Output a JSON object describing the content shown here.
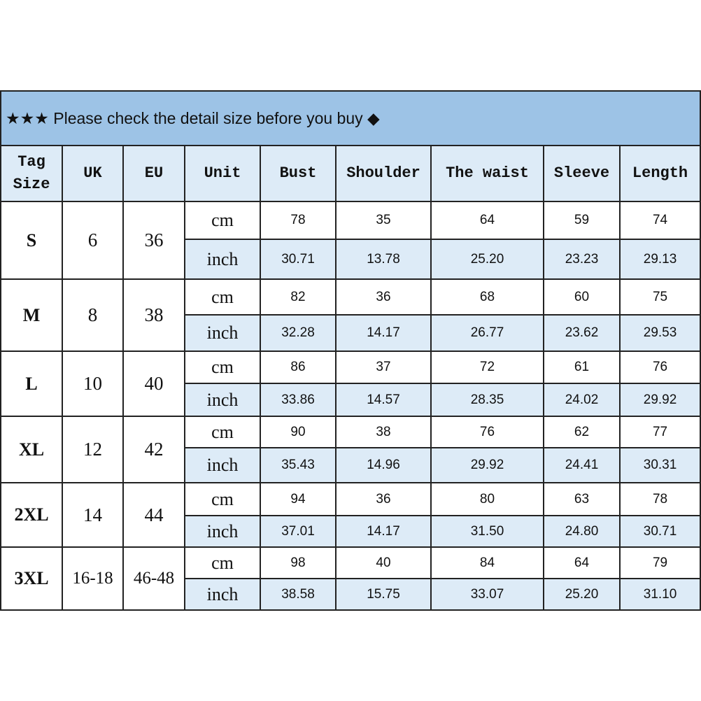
{
  "banner": {
    "stars": "★★★",
    "text": "Please check the detail size before you buy",
    "diamond": "◆"
  },
  "colors": {
    "banner": "#9dc3e6",
    "header_and_inch_rows": "#ddebf7"
  },
  "headers": [
    "Tag Size",
    "UK",
    "EU",
    "Unit",
    "Bust",
    "Shoulder",
    "The waist",
    "Sleeve",
    "Length"
  ],
  "units": {
    "cm": "cm",
    "inch": "inch"
  },
  "rows": [
    {
      "tag": "S",
      "uk": "6",
      "eu": "36",
      "cm": [
        "78",
        "35",
        "64",
        "59",
        "74"
      ],
      "inch": [
        "30.71",
        "13.78",
        "25.20",
        "23.23",
        "29.13"
      ]
    },
    {
      "tag": "M",
      "uk": "8",
      "eu": "38",
      "cm": [
        "82",
        "36",
        "68",
        "60",
        "75"
      ],
      "inch": [
        "32.28",
        "14.17",
        "26.77",
        "23.62",
        "29.53"
      ]
    },
    {
      "tag": "L",
      "uk": "10",
      "eu": "40",
      "cm": [
        "86",
        "37",
        "72",
        "61",
        "76"
      ],
      "inch": [
        "33.86",
        "14.57",
        "28.35",
        "24.02",
        "29.92"
      ]
    },
    {
      "tag": "XL",
      "uk": "12",
      "eu": "42",
      "cm": [
        "90",
        "38",
        "76",
        "62",
        "77"
      ],
      "inch": [
        "35.43",
        "14.96",
        "29.92",
        "24.41",
        "30.31"
      ]
    },
    {
      "tag": "2XL",
      "uk": "14",
      "eu": "44",
      "cm": [
        "94",
        "36",
        "80",
        "63",
        "78"
      ],
      "inch": [
        "37.01",
        "14.17",
        "31.50",
        "24.80",
        "30.71"
      ]
    },
    {
      "tag": "3XL",
      "uk": "16-18",
      "eu": "46-48",
      "cm": [
        "98",
        "40",
        "84",
        "64",
        "79"
      ],
      "inch": [
        "38.58",
        "15.75",
        "33.07",
        "25.20",
        "31.10"
      ]
    }
  ]
}
